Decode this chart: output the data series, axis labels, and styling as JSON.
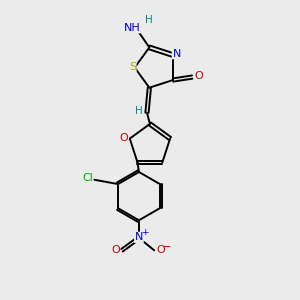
{
  "bg_color": "#ebebeb",
  "bond_color": "#000000",
  "bond_width": 1.4,
  "atoms": {
    "S": {
      "color": "#aaaa00"
    },
    "N": {
      "color": "#0000cc"
    },
    "O": {
      "color": "#cc0000"
    },
    "Cl": {
      "color": "#00aa00"
    },
    "H": {
      "color": "#008888"
    }
  },
  "figsize": [
    3.0,
    3.0
  ],
  "dpi": 100
}
